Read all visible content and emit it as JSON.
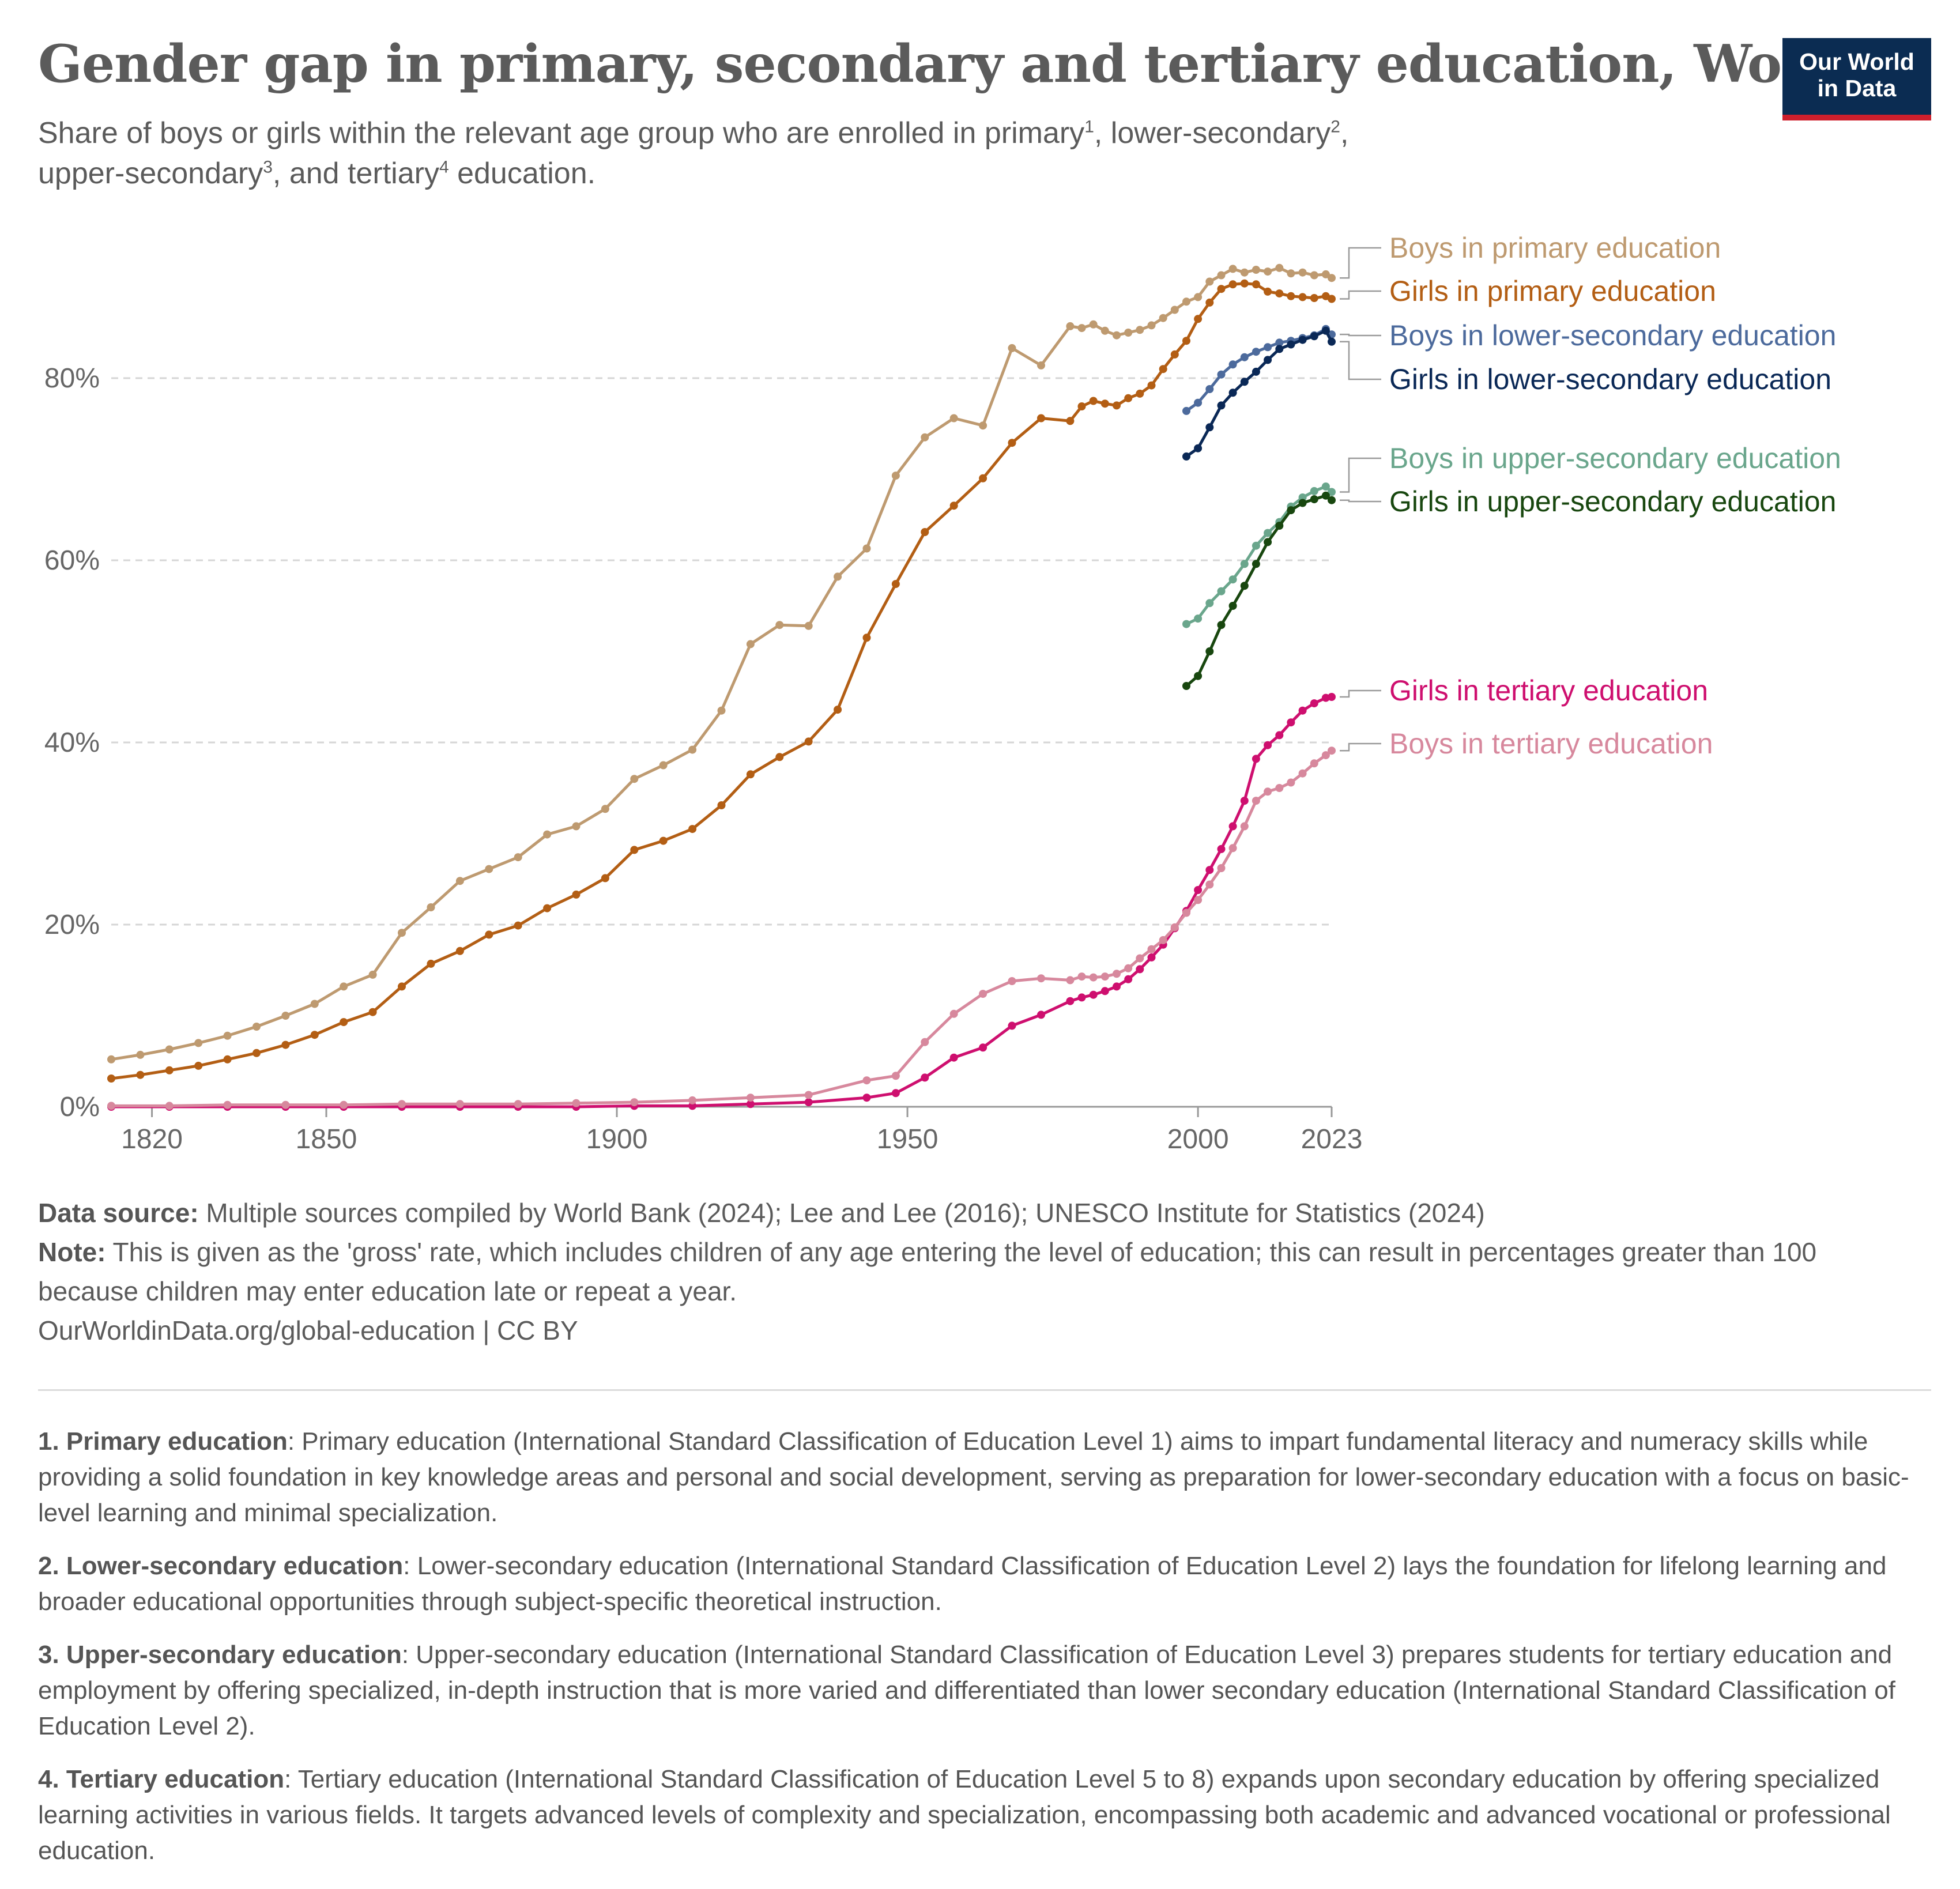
{
  "header": {
    "title": "Gender gap in primary, secondary and tertiary education, World",
    "subtitle_line1_pre": "Share of boys or girls within the relevant age group who are enrolled in  primary",
    "subtitle_fn1": "1",
    "subtitle_line1_mid": ", lower-secondary",
    "subtitle_fn2": "2",
    "subtitle_line1_end": ",",
    "subtitle_line2_pre": "upper-secondary",
    "subtitle_fn3": "3",
    "subtitle_line2_mid": ", and tertiary",
    "subtitle_fn4": "4",
    "subtitle_line2_end": " education."
  },
  "logo": {
    "line1": "Our World",
    "line2": "in Data"
  },
  "chart_data": {
    "type": "line",
    "title": "Gender gap in primary, secondary and tertiary education, World",
    "xlabel": "",
    "ylabel": "",
    "xlim": [
      1813,
      2023
    ],
    "ylim": [
      0,
      100
    ],
    "x_ticks": [
      1820,
      1850,
      1900,
      1950,
      2000,
      2023
    ],
    "x_tick_labels": [
      "1820",
      "1850",
      "1900",
      "1950",
      "2000",
      "2023"
    ],
    "y_ticks": [
      0,
      20,
      40,
      60,
      80
    ],
    "y_tick_labels": [
      "0%",
      "20%",
      "40%",
      "60%",
      "80%"
    ],
    "grid": "horizontal dashed",
    "legend": "right, labels at line ends",
    "series": [
      {
        "name": "Boys in primary education",
        "color": "#be9a70",
        "points": [
          [
            1813,
            5.2
          ],
          [
            1818,
            5.7
          ],
          [
            1823,
            6.3
          ],
          [
            1828,
            7.0
          ],
          [
            1833,
            7.8
          ],
          [
            1838,
            8.8
          ],
          [
            1843,
            10.0
          ],
          [
            1848,
            11.3
          ],
          [
            1853,
            13.2
          ],
          [
            1858,
            14.5
          ],
          [
            1863,
            19.1
          ],
          [
            1868,
            21.9
          ],
          [
            1873,
            24.8
          ],
          [
            1878,
            26.1
          ],
          [
            1883,
            27.4
          ],
          [
            1888,
            29.9
          ],
          [
            1893,
            30.8
          ],
          [
            1898,
            32.7
          ],
          [
            1903,
            36.0
          ],
          [
            1908,
            37.5
          ],
          [
            1913,
            39.2
          ],
          [
            1918,
            43.5
          ],
          [
            1923,
            50.8
          ],
          [
            1928,
            52.9
          ],
          [
            1933,
            52.8
          ],
          [
            1938,
            58.2
          ],
          [
            1943,
            61.3
          ],
          [
            1948,
            69.3
          ],
          [
            1953,
            73.5
          ],
          [
            1958,
            75.6
          ],
          [
            1963,
            74.8
          ],
          [
            1968,
            83.3
          ],
          [
            1973,
            81.4
          ],
          [
            1978,
            85.7
          ],
          [
            1980,
            85.5
          ],
          [
            1982,
            85.9
          ],
          [
            1984,
            85.2
          ],
          [
            1986,
            84.7
          ],
          [
            1988,
            85.0
          ],
          [
            1990,
            85.3
          ],
          [
            1992,
            85.8
          ],
          [
            1994,
            86.6
          ],
          [
            1996,
            87.5
          ],
          [
            1998,
            88.4
          ],
          [
            2000,
            88.9
          ],
          [
            2002,
            90.6
          ],
          [
            2004,
            91.3
          ],
          [
            2006,
            92.0
          ],
          [
            2008,
            91.6
          ],
          [
            2010,
            91.9
          ],
          [
            2012,
            91.7
          ],
          [
            2014,
            92.1
          ],
          [
            2016,
            91.5
          ],
          [
            2018,
            91.6
          ],
          [
            2020,
            91.3
          ],
          [
            2022,
            91.4
          ],
          [
            2023,
            91.0
          ]
        ]
      },
      {
        "name": "Girls in primary education",
        "color": "#b35e14",
        "points": [
          [
            1813,
            3.1
          ],
          [
            1818,
            3.5
          ],
          [
            1823,
            4.0
          ],
          [
            1828,
            4.5
          ],
          [
            1833,
            5.2
          ],
          [
            1838,
            5.9
          ],
          [
            1843,
            6.8
          ],
          [
            1848,
            7.9
          ],
          [
            1853,
            9.3
          ],
          [
            1858,
            10.4
          ],
          [
            1863,
            13.2
          ],
          [
            1868,
            15.7
          ],
          [
            1873,
            17.1
          ],
          [
            1878,
            18.9
          ],
          [
            1883,
            19.9
          ],
          [
            1888,
            21.8
          ],
          [
            1893,
            23.3
          ],
          [
            1898,
            25.1
          ],
          [
            1903,
            28.2
          ],
          [
            1908,
            29.2
          ],
          [
            1913,
            30.5
          ],
          [
            1918,
            33.1
          ],
          [
            1923,
            36.5
          ],
          [
            1928,
            38.4
          ],
          [
            1933,
            40.1
          ],
          [
            1938,
            43.6
          ],
          [
            1943,
            51.5
          ],
          [
            1948,
            57.4
          ],
          [
            1953,
            63.1
          ],
          [
            1958,
            66.0
          ],
          [
            1963,
            69.0
          ],
          [
            1968,
            72.9
          ],
          [
            1973,
            75.6
          ],
          [
            1978,
            75.3
          ],
          [
            1980,
            76.9
          ],
          [
            1982,
            77.5
          ],
          [
            1984,
            77.2
          ],
          [
            1986,
            77.0
          ],
          [
            1988,
            77.8
          ],
          [
            1990,
            78.3
          ],
          [
            1992,
            79.2
          ],
          [
            1994,
            81.0
          ],
          [
            1996,
            82.6
          ],
          [
            1998,
            84.1
          ],
          [
            2000,
            86.5
          ],
          [
            2002,
            88.3
          ],
          [
            2004,
            89.8
          ],
          [
            2006,
            90.3
          ],
          [
            2008,
            90.4
          ],
          [
            2010,
            90.3
          ],
          [
            2012,
            89.5
          ],
          [
            2014,
            89.3
          ],
          [
            2016,
            89.0
          ],
          [
            2018,
            88.9
          ],
          [
            2020,
            88.8
          ],
          [
            2022,
            89.0
          ],
          [
            2023,
            88.7
          ]
        ]
      },
      {
        "name": "Boys in lower-secondary education",
        "color": "#4c6a9c",
        "points": [
          [
            1998,
            76.4
          ],
          [
            2000,
            77.3
          ],
          [
            2002,
            78.8
          ],
          [
            2004,
            80.4
          ],
          [
            2006,
            81.5
          ],
          [
            2008,
            82.3
          ],
          [
            2010,
            82.9
          ],
          [
            2012,
            83.4
          ],
          [
            2014,
            83.9
          ],
          [
            2016,
            84.1
          ],
          [
            2018,
            84.4
          ],
          [
            2020,
            84.7
          ],
          [
            2022,
            85.4
          ],
          [
            2023,
            84.8
          ]
        ]
      },
      {
        "name": "Girls in lower-secondary education",
        "color": "#0a2856",
        "points": [
          [
            1998,
            71.4
          ],
          [
            2000,
            72.3
          ],
          [
            2002,
            74.6
          ],
          [
            2004,
            77.0
          ],
          [
            2006,
            78.4
          ],
          [
            2008,
            79.6
          ],
          [
            2010,
            80.7
          ],
          [
            2012,
            82.0
          ],
          [
            2014,
            83.2
          ],
          [
            2016,
            83.7
          ],
          [
            2018,
            84.2
          ],
          [
            2020,
            84.6
          ],
          [
            2022,
            85.2
          ],
          [
            2023,
            84.0
          ]
        ]
      },
      {
        "name": "Boys in upper-secondary education",
        "color": "#6aa68c",
        "points": [
          [
            1998,
            53.0
          ],
          [
            2000,
            53.6
          ],
          [
            2002,
            55.3
          ],
          [
            2004,
            56.6
          ],
          [
            2006,
            57.9
          ],
          [
            2008,
            59.6
          ],
          [
            2010,
            61.6
          ],
          [
            2012,
            63.0
          ],
          [
            2014,
            64.2
          ],
          [
            2016,
            65.9
          ],
          [
            2018,
            66.9
          ],
          [
            2020,
            67.6
          ],
          [
            2022,
            68.1
          ],
          [
            2023,
            67.5
          ]
        ]
      },
      {
        "name": "Girls in upper-secondary education",
        "color": "#18470f",
        "points": [
          [
            1998,
            46.2
          ],
          [
            2000,
            47.3
          ],
          [
            2002,
            50.0
          ],
          [
            2004,
            52.9
          ],
          [
            2006,
            55.0
          ],
          [
            2008,
            57.2
          ],
          [
            2010,
            59.6
          ],
          [
            2012,
            62.0
          ],
          [
            2014,
            63.8
          ],
          [
            2016,
            65.5
          ],
          [
            2018,
            66.3
          ],
          [
            2020,
            66.7
          ],
          [
            2022,
            67.1
          ],
          [
            2023,
            66.6
          ]
        ]
      },
      {
        "name": "Girls in tertiary education",
        "color": "#ce0f6f",
        "points": [
          [
            1813,
            0
          ],
          [
            1823,
            0
          ],
          [
            1833,
            0
          ],
          [
            1843,
            0
          ],
          [
            1853,
            0
          ],
          [
            1863,
            0
          ],
          [
            1873,
            0
          ],
          [
            1883,
            0
          ],
          [
            1893,
            0
          ],
          [
            1903,
            0.1
          ],
          [
            1913,
            0.1
          ],
          [
            1923,
            0.3
          ],
          [
            1933,
            0.5
          ],
          [
            1943,
            1.0
          ],
          [
            1948,
            1.5
          ],
          [
            1953,
            3.2
          ],
          [
            1958,
            5.4
          ],
          [
            1963,
            6.5
          ],
          [
            1968,
            8.9
          ],
          [
            1973,
            10.1
          ],
          [
            1978,
            11.6
          ],
          [
            1980,
            12.0
          ],
          [
            1982,
            12.3
          ],
          [
            1984,
            12.7
          ],
          [
            1986,
            13.2
          ],
          [
            1988,
            14.0
          ],
          [
            1990,
            15.1
          ],
          [
            1992,
            16.4
          ],
          [
            1994,
            17.8
          ],
          [
            1996,
            19.6
          ],
          [
            1998,
            21.5
          ],
          [
            2000,
            23.8
          ],
          [
            2002,
            26.0
          ],
          [
            2004,
            28.3
          ],
          [
            2006,
            30.8
          ],
          [
            2008,
            33.6
          ],
          [
            2010,
            38.2
          ],
          [
            2012,
            39.7
          ],
          [
            2014,
            40.8
          ],
          [
            2016,
            42.2
          ],
          [
            2018,
            43.5
          ],
          [
            2020,
            44.3
          ],
          [
            2022,
            44.9
          ],
          [
            2023,
            45.0
          ]
        ]
      },
      {
        "name": "Boys in tertiary education",
        "color": "#d7889d",
        "points": [
          [
            1813,
            0.1
          ],
          [
            1823,
            0.1
          ],
          [
            1833,
            0.2
          ],
          [
            1843,
            0.2
          ],
          [
            1853,
            0.2
          ],
          [
            1863,
            0.3
          ],
          [
            1873,
            0.3
          ],
          [
            1883,
            0.3
          ],
          [
            1893,
            0.4
          ],
          [
            1903,
            0.5
          ],
          [
            1913,
            0.7
          ],
          [
            1923,
            1.0
          ],
          [
            1933,
            1.3
          ],
          [
            1943,
            2.9
          ],
          [
            1948,
            3.4
          ],
          [
            1953,
            7.1
          ],
          [
            1958,
            10.2
          ],
          [
            1963,
            12.4
          ],
          [
            1968,
            13.8
          ],
          [
            1973,
            14.1
          ],
          [
            1978,
            13.9
          ],
          [
            1980,
            14.3
          ],
          [
            1982,
            14.2
          ],
          [
            1984,
            14.3
          ],
          [
            1986,
            14.6
          ],
          [
            1988,
            15.2
          ],
          [
            1990,
            16.3
          ],
          [
            1992,
            17.3
          ],
          [
            1994,
            18.3
          ],
          [
            1996,
            19.7
          ],
          [
            1998,
            21.3
          ],
          [
            2000,
            22.7
          ],
          [
            2002,
            24.4
          ],
          [
            2004,
            26.2
          ],
          [
            2006,
            28.4
          ],
          [
            2008,
            30.8
          ],
          [
            2010,
            33.6
          ],
          [
            2012,
            34.6
          ],
          [
            2014,
            35.0
          ],
          [
            2016,
            35.6
          ],
          [
            2018,
            36.6
          ],
          [
            2020,
            37.7
          ],
          [
            2022,
            38.6
          ],
          [
            2023,
            39.1
          ]
        ]
      }
    ]
  },
  "footer": {
    "source_label": "Data source:",
    "source_text": " Multiple sources compiled by World Bank (2024); Lee and Lee (2016); UNESCO Institute for Statistics (2024)",
    "note_label": "Note:",
    "note_text": " This is given as the 'gross' rate, which includes children of any age entering the level of education; this can result in percentages greater than 100 because children may enter education late or repeat a year.",
    "url": "OurWorldinData.org/global-education",
    "license": " | CC BY"
  },
  "definitions": [
    {
      "label": "1. Primary education",
      "text": ": Primary education (International Standard Classification of Education Level 1) aims to impart fundamental literacy and numeracy skills while providing a solid foundation in key knowledge areas and personal and social development, serving as preparation for lower-secondary education with a focus on basic-level learning and minimal specialization."
    },
    {
      "label": "2. Lower-secondary education",
      "text": ": Lower-secondary education (International Standard Classification of Education Level 2) lays the foundation for lifelong learning and broader educational opportunities through subject-specific theoretical instruction."
    },
    {
      "label": "3. Upper-secondary education",
      "text": ": Upper-secondary education (International Standard Classification of Education Level 3) prepares students for tertiary education and employment by offering specialized, in-depth instruction that is more varied and differentiated than lower secondary education (International Standard Classification of Education Level 2)."
    },
    {
      "label": "4. Tertiary education",
      "text": ": Tertiary education (International Standard Classification of Education Level 5 to 8) expands upon secondary education by offering specialized learning activities in various fields. It targets advanced levels of complexity and specialization, encompassing both academic and advanced vocational or professional education."
    }
  ]
}
